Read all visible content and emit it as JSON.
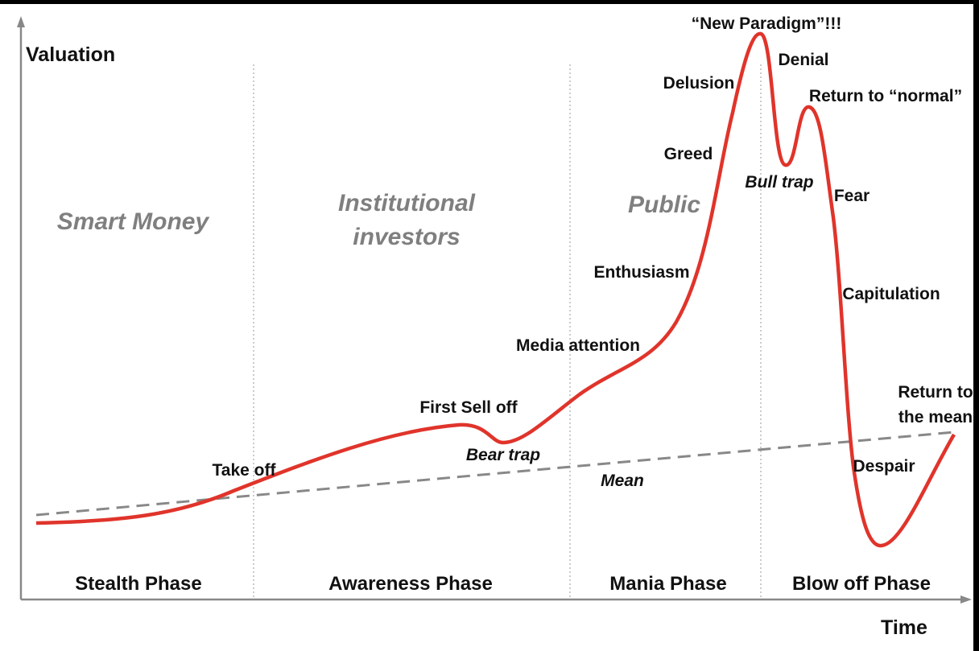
{
  "axes": {
    "y_label": "Valuation",
    "x_label": "Time"
  },
  "participants": {
    "smart_money": "Smart Money",
    "institutional": [
      "Institutional",
      "investors"
    ],
    "public": "Public"
  },
  "phases": [
    "Stealth Phase",
    "Awareness Phase",
    "Mania Phase",
    "Blow off Phase"
  ],
  "stages": {
    "take_off": "Take off",
    "first_sell_off": "First Sell off",
    "bear_trap": "Bear trap",
    "media_attention": "Media attention",
    "enthusiasm": "Enthusiasm",
    "greed": "Greed",
    "delusion": "Delusion",
    "new_paradigm": "“New Paradigm”!!!",
    "denial": "Denial",
    "bull_trap": "Bull trap",
    "return_to_normal": "Return to “normal”",
    "fear": "Fear",
    "capitulation": "Capitulation",
    "despair": "Despair",
    "return_to_mean": [
      "Return to",
      "the mean"
    ]
  },
  "mean_label": "Mean"
}
